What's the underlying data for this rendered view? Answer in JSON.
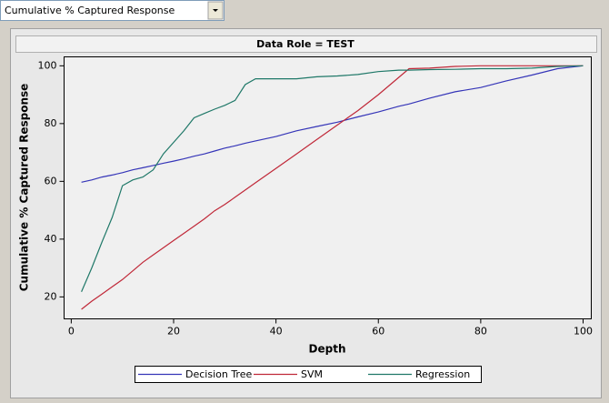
{
  "dropdown": {
    "label": "Cumulative % Captured Response"
  },
  "chart_data": {
    "type": "line",
    "title": "Data Role = TEST",
    "x_label": "Depth",
    "y_label": "Cumulative % Captured Response",
    "x": [
      2,
      4,
      6,
      8,
      10,
      12,
      14,
      16,
      18,
      20,
      22,
      24,
      26,
      28,
      30,
      32,
      34,
      36,
      40,
      44,
      48,
      52,
      56,
      60,
      64,
      66,
      70,
      75,
      80,
      85,
      90,
      95,
      100
    ],
    "series": [
      {
        "name": "Decision Tree",
        "color": "#3535b8",
        "values": [
          59.7,
          60.5,
          61.5,
          62.2,
          63,
          64,
          64.7,
          65.5,
          66.3,
          67,
          67.8,
          68.7,
          69.5,
          70.5,
          71.5,
          72.3,
          73.2,
          74,
          75.5,
          77.5,
          79,
          80.5,
          82.3,
          84,
          86,
          86.8,
          88.8,
          91,
          92.5,
          94.8,
          96.8,
          99,
          100
        ]
      },
      {
        "name": "SVM",
        "color": "#c02838",
        "values": [
          15.7,
          18.5,
          21,
          23.5,
          26,
          29,
          32,
          34.5,
          37,
          39.5,
          42,
          44.5,
          47,
          49.8,
          52,
          54.5,
          57,
          59.5,
          64.5,
          69.5,
          74.5,
          79.5,
          84.5,
          90,
          96,
          99,
          99.2,
          99.8,
          100,
          100,
          100,
          100,
          100
        ]
      },
      {
        "name": "Regression",
        "color": "#1f7868",
        "values": [
          21.8,
          30,
          39,
          47.5,
          58.5,
          60.5,
          61.5,
          64,
          69.5,
          73.5,
          77.5,
          82,
          83.5,
          85,
          86.3,
          88,
          93.5,
          95.5,
          95.5,
          95.5,
          96.2,
          96.5,
          97,
          98,
          98.5,
          98.5,
          98.7,
          98.8,
          99,
          99,
          99.2,
          99.8,
          100
        ]
      }
    ],
    "xlim": [
      -1.4,
      101.6
    ],
    "ylim": [
      12.4,
      103.1
    ],
    "xticks": [
      0,
      20,
      40,
      60,
      80,
      100
    ],
    "yticks": [
      20,
      40,
      60,
      80,
      100
    ],
    "grid": false,
    "legend": "bottom"
  }
}
